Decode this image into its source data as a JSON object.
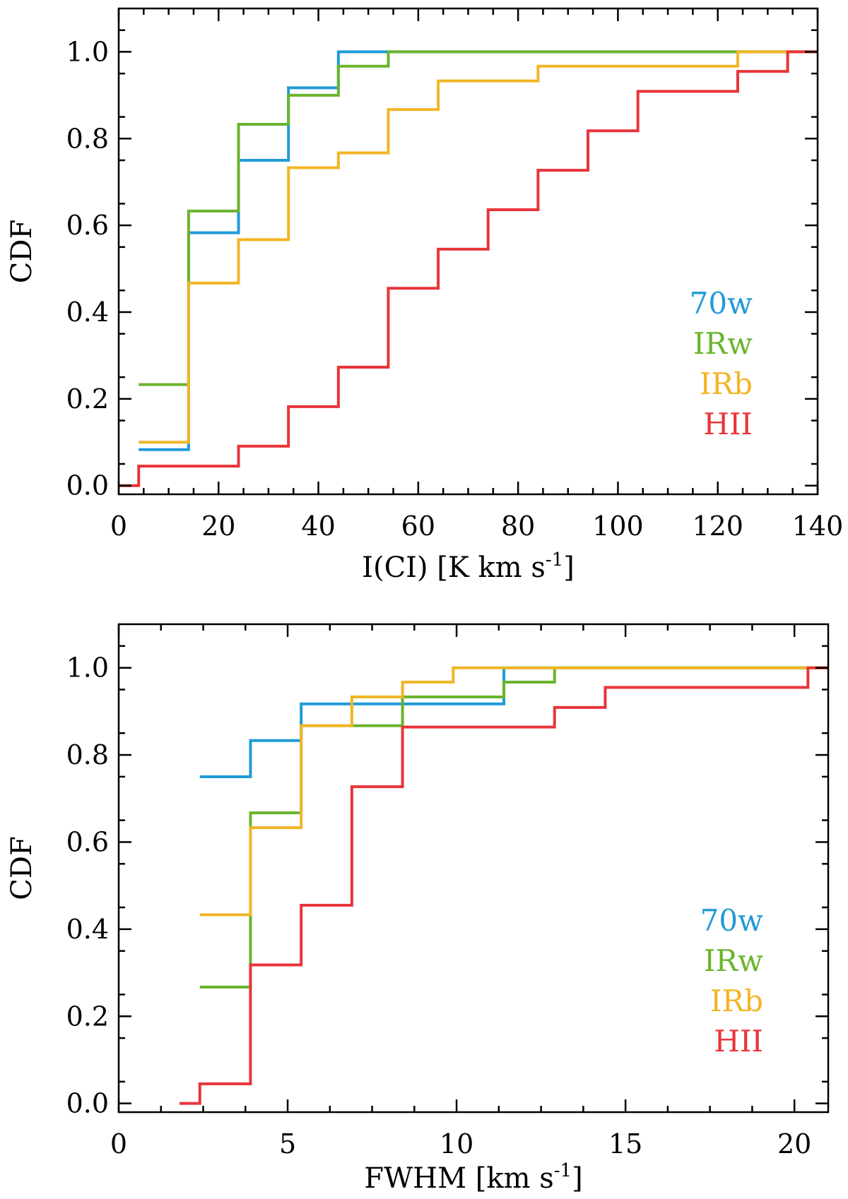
{
  "chart_data": [
    {
      "type": "line",
      "step": "post",
      "xlabel": "I(CI) [K km s",
      "xlabel_sup": "-1",
      "xlabel_end": "]",
      "ylabel": "CDF",
      "xlim": [
        0,
        140
      ],
      "ylim": [
        -0.02,
        1.1
      ],
      "xticks": [
        0,
        20,
        40,
        60,
        80,
        100,
        120,
        140
      ],
      "xtick_labels": [
        "0",
        "20",
        "40",
        "60",
        "80",
        "100",
        "120",
        "140"
      ],
      "yticks": [
        0.0,
        0.2,
        0.4,
        0.6,
        0.8,
        1.0
      ],
      "ytick_labels": [
        "0.0",
        "0.2",
        "0.4",
        "0.6",
        "0.8",
        "1.0"
      ],
      "legend_position": "bottom-right",
      "series": [
        {
          "name": "70w",
          "color": "#1f9bd7",
          "x": [
            4,
            14,
            24,
            34,
            44,
            140
          ],
          "y": [
            0.083,
            0.583,
            0.75,
            0.917,
            1.0,
            1.0
          ]
        },
        {
          "name": "IRw",
          "color": "#6ab42d",
          "x": [
            4,
            14,
            24,
            34,
            44,
            54,
            140
          ],
          "y": [
            0.233,
            0.633,
            0.833,
            0.9,
            0.967,
            1.0,
            1.0
          ]
        },
        {
          "name": "IRb",
          "color": "#f2b526",
          "x": [
            4,
            14,
            24,
            34,
            44,
            54,
            64,
            84,
            124,
            140
          ],
          "y": [
            0.1,
            0.467,
            0.567,
            0.733,
            0.767,
            0.867,
            0.933,
            0.967,
            1.0,
            1.0
          ]
        },
        {
          "name": "HII",
          "color": "#e8343a",
          "x": [
            0,
            4,
            24,
            34,
            44,
            54,
            64,
            74,
            84,
            94,
            104,
            124,
            134,
            140
          ],
          "y": [
            0.0,
            0.045,
            0.091,
            0.182,
            0.273,
            0.455,
            0.545,
            0.636,
            0.727,
            0.818,
            0.909,
            0.955,
            1.0,
            1.0
          ]
        }
      ]
    },
    {
      "type": "line",
      "step": "post",
      "xlabel": "FWHM [km s",
      "xlabel_sup": "-1",
      "xlabel_end": "]",
      "ylabel": "CDF",
      "xlim": [
        0,
        21
      ],
      "ylim": [
        -0.02,
        1.1
      ],
      "xticks": [
        0,
        5,
        10,
        15,
        20
      ],
      "xtick_labels": [
        "0",
        "5",
        "10",
        "15",
        "20"
      ],
      "yticks": [
        0.0,
        0.2,
        0.4,
        0.6,
        0.8,
        1.0
      ],
      "ytick_labels": [
        "0.0",
        "0.2",
        "0.4",
        "0.6",
        "0.8",
        "1.0"
      ],
      "legend_position": "bottom-right",
      "series": [
        {
          "name": "70w",
          "color": "#1f9bd7",
          "x": [
            2.4,
            3.9,
            5.4,
            11.4,
            21
          ],
          "y": [
            0.75,
            0.833,
            0.917,
            1.0,
            1.0
          ]
        },
        {
          "name": "IRw",
          "color": "#6ab42d",
          "x": [
            2.4,
            3.9,
            5.4,
            8.4,
            11.4,
            12.9,
            21
          ],
          "y": [
            0.267,
            0.667,
            0.867,
            0.933,
            0.967,
            1.0,
            1.0
          ]
        },
        {
          "name": "IRb",
          "color": "#f2b526",
          "x": [
            2.4,
            3.9,
            5.4,
            6.9,
            8.4,
            9.9,
            21
          ],
          "y": [
            0.433,
            0.633,
            0.867,
            0.933,
            0.967,
            1.0,
            1.0
          ]
        },
        {
          "name": "HII",
          "color": "#e8343a",
          "x": [
            1.8,
            2.4,
            3.9,
            5.4,
            6.9,
            8.4,
            12.9,
            14.4,
            20.4,
            21
          ],
          "y": [
            0.0,
            0.045,
            0.318,
            0.455,
            0.727,
            0.864,
            0.909,
            0.955,
            1.0,
            1.0
          ]
        }
      ]
    }
  ]
}
